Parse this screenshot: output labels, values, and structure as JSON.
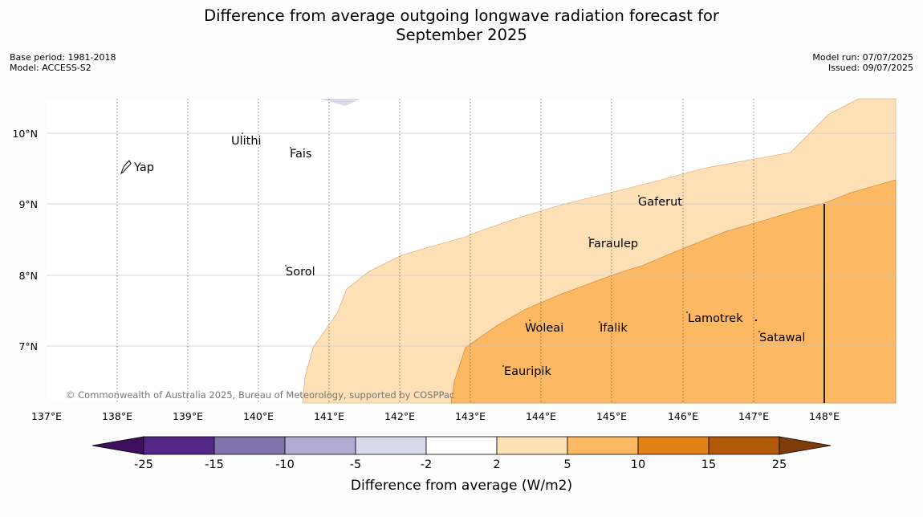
{
  "header": {
    "title_line1": "Difference from average outgoing longwave radiation forecast for",
    "title_line2": "September 2025",
    "base_period": "Base period: 1981-2018",
    "model": "Model: ACCESS-S2",
    "model_run": "Model run: 07/07/2025",
    "issued": "Issued: 09/07/2025"
  },
  "map": {
    "copyright": "© Commonwealth of Australia 2025, Bureau of Meteorology, supported by COSPPac",
    "lon_ticks": [
      "137°E",
      "138°E",
      "139°E",
      "140°E",
      "141°E",
      "142°E",
      "143°E",
      "144°E",
      "145°E",
      "146°E",
      "147°E",
      "148°E"
    ],
    "lat_ticks": [
      "10°N",
      "9°N",
      "8°N",
      "7°N"
    ],
    "places": [
      "Yap",
      "Ulithi",
      "Fais",
      "Gaferut",
      "Faraulep",
      "Sorol",
      "Lamotrek",
      "Woleai",
      "Ifalik",
      "Satawal",
      "Eauripik"
    ]
  },
  "legend": {
    "title": "Difference from average (W/m2)",
    "tick_labels": [
      "-25",
      "-15",
      "-10",
      "-5",
      "-2",
      "2",
      "5",
      "10",
      "15",
      "25"
    ],
    "colors": [
      "#3f0f5f",
      "#542788",
      "#8073ac",
      "#b2abd2",
      "#d8daeb",
      "#ffffff",
      "#fee0b6",
      "#fdb863",
      "#e08214",
      "#b35806",
      "#7f3b08"
    ]
  }
}
